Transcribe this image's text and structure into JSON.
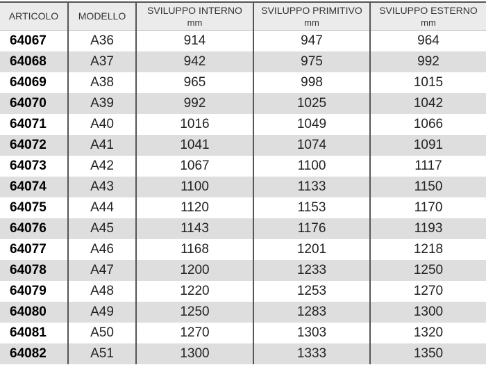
{
  "headers": [
    {
      "label": "ARTICOLO",
      "unit": ""
    },
    {
      "label": "MODELLO",
      "unit": ""
    },
    {
      "label": "SVILUPPO INTERNO",
      "unit": "mm"
    },
    {
      "label": "SVILUPPO PRIMITIVO",
      "unit": "mm"
    },
    {
      "label": "SVILUPPO ESTERNO",
      "unit": "mm"
    }
  ],
  "rows": [
    [
      "64067",
      "A36",
      "914",
      "947",
      "964"
    ],
    [
      "64068",
      "A37",
      "942",
      "975",
      "992"
    ],
    [
      "64069",
      "A38",
      "965",
      "998",
      "1015"
    ],
    [
      "64070",
      "A39",
      "992",
      "1025",
      "1042"
    ],
    [
      "64071",
      "A40",
      "1016",
      "1049",
      "1066"
    ],
    [
      "64072",
      "A41",
      "1041",
      "1074",
      "1091"
    ],
    [
      "64073",
      "A42",
      "1067",
      "1100",
      "1117"
    ],
    [
      "64074",
      "A43",
      "1100",
      "1133",
      "1150"
    ],
    [
      "64075",
      "A44",
      "1120",
      "1153",
      "1170"
    ],
    [
      "64076",
      "A45",
      "1143",
      "1176",
      "1193"
    ],
    [
      "64077",
      "A46",
      "1168",
      "1201",
      "1218"
    ],
    [
      "64078",
      "A47",
      "1200",
      "1233",
      "1250"
    ],
    [
      "64079",
      "A48",
      "1220",
      "1253",
      "1270"
    ],
    [
      "64080",
      "A49",
      "1250",
      "1283",
      "1300"
    ],
    [
      "64081",
      "A50",
      "1270",
      "1303",
      "1320"
    ],
    [
      "64082",
      "A51",
      "1300",
      "1333",
      "1350"
    ]
  ],
  "colors": {
    "stripe": "#dedede",
    "header_bg": "#ebebeb"
  }
}
